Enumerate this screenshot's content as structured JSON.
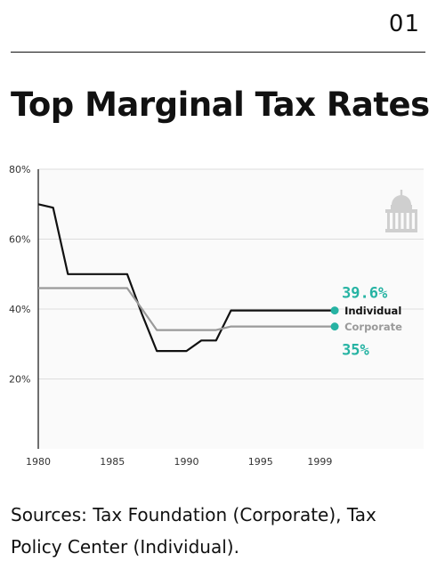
{
  "page_number": "01",
  "title": "Top Marginal Tax Rates",
  "sources_text": "Sources: Tax Foundation (Corporate), Tax Policy Center (Individual).",
  "icon": "capitol-building-icon",
  "colors": {
    "individual": "#111111",
    "corporate": "#9a9a9a",
    "accent": "#26b3a3",
    "grid": "#dddddd",
    "plot_bg": "#fafafa"
  },
  "chart_data": {
    "type": "line",
    "title": "Top Marginal Tax Rates",
    "xlabel": "",
    "ylabel": "",
    "xlim": [
      1980,
      2006
    ],
    "ylim": [
      0,
      80
    ],
    "x_ticks": [
      1980,
      1985,
      1990,
      1995,
      1999
    ],
    "y_ticks": [
      20,
      40,
      60,
      80
    ],
    "y_tick_labels": [
      "20%",
      "40%",
      "60%",
      "80%"
    ],
    "grid": "horizontal",
    "series": [
      {
        "name": "Individual",
        "color": "#111111",
        "points": [
          [
            1980,
            70
          ],
          [
            1981,
            69
          ],
          [
            1982,
            50
          ],
          [
            1986,
            50
          ],
          [
            1987,
            38.5
          ],
          [
            1988,
            28
          ],
          [
            1990,
            28
          ],
          [
            1991,
            31
          ],
          [
            1992,
            31
          ],
          [
            1993,
            39.6
          ],
          [
            2000,
            39.6
          ]
        ],
        "end_label": "39.6%"
      },
      {
        "name": "Corporate",
        "color": "#9a9a9a",
        "points": [
          [
            1980,
            46
          ],
          [
            1986,
            46
          ],
          [
            1987,
            40
          ],
          [
            1988,
            34
          ],
          [
            1992,
            34
          ],
          [
            1993,
            35
          ],
          [
            2000,
            35
          ]
        ],
        "end_label": "35%"
      }
    ]
  }
}
